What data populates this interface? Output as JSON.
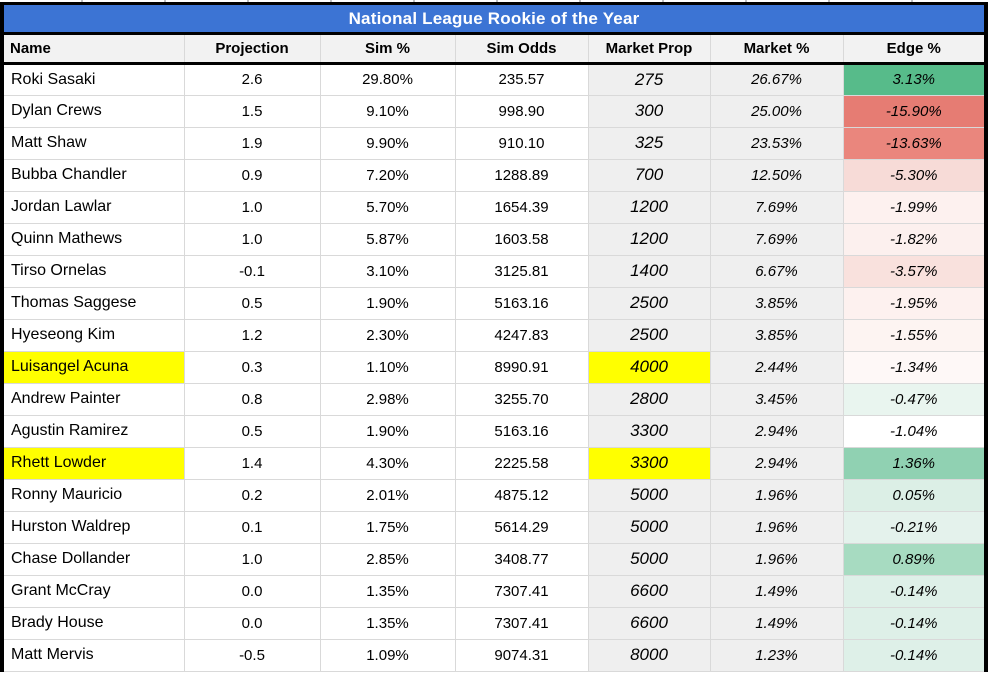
{
  "title": "National League Rookie of the Year",
  "colors": {
    "title_bg": "#3c74d4",
    "title_text": "#ffffff",
    "header_bg": "#f2f2f2",
    "market_col_bg": "#efefef",
    "grid_line": "#d9d9d9",
    "frame_border": "#000000",
    "highlight_yellow": "#ffff00",
    "edge_positive_strong": "#57bb8a",
    "edge_negative_strong": "#e67c73"
  },
  "table": {
    "columns": [
      "Name",
      "Projection",
      "Sim %",
      "Sim Odds",
      "Market Prop",
      "Market %",
      "Edge %"
    ],
    "rows": [
      {
        "cells": [
          "Roki Sasaki",
          "2.6",
          "29.80%",
          "235.57",
          "275",
          "26.67%",
          "3.13%"
        ],
        "edge_color": "#57bb8a"
      },
      {
        "cells": [
          "Dylan Crews",
          "1.5",
          "9.10%",
          "998.90",
          "300",
          "25.00%",
          "-15.90%"
        ],
        "edge_color": "#e67c73"
      },
      {
        "cells": [
          "Matt Shaw",
          "1.9",
          "9.90%",
          "910.10",
          "325",
          "23.53%",
          "-13.63%"
        ],
        "edge_color": "#ea867d"
      },
      {
        "cells": [
          "Bubba Chandler",
          "0.9",
          "7.20%",
          "1288.89",
          "700",
          "12.50%",
          "-5.30%"
        ],
        "edge_color": "#f7dbd7"
      },
      {
        "cells": [
          "Jordan Lawlar",
          "1.0",
          "5.70%",
          "1654.39",
          "1200",
          "7.69%",
          "-1.99%"
        ],
        "edge_color": "#fdf1ef"
      },
      {
        "cells": [
          "Quinn Mathews",
          "1.0",
          "5.87%",
          "1603.58",
          "1200",
          "7.69%",
          "-1.82%"
        ],
        "edge_color": "#fcf0ee"
      },
      {
        "cells": [
          "Tirso Ornelas",
          "-0.1",
          "3.10%",
          "3125.81",
          "1400",
          "6.67%",
          "-3.57%"
        ],
        "edge_color": "#f9e1dd"
      },
      {
        "cells": [
          "Thomas Saggese",
          "0.5",
          "1.90%",
          "5163.16",
          "2500",
          "3.85%",
          "-1.95%"
        ],
        "edge_color": "#fdf1ef"
      },
      {
        "cells": [
          "Hyeseong Kim",
          "1.2",
          "2.30%",
          "4247.83",
          "2500",
          "3.85%",
          "-1.55%"
        ],
        "edge_color": "#fdf4f2"
      },
      {
        "cells": [
          "Luisangel Acuna",
          "0.3",
          "1.10%",
          "8990.91",
          "4000",
          "2.44%",
          "-1.34%"
        ],
        "edge_color": "#fef8f7",
        "name_highlight": true,
        "prop_highlight": true
      },
      {
        "cells": [
          "Andrew Painter",
          "0.8",
          "2.98%",
          "3255.70",
          "2800",
          "3.45%",
          "-0.47%"
        ],
        "edge_color": "#e9f5ef"
      },
      {
        "cells": [
          "Agustin Ramirez",
          "0.5",
          "1.90%",
          "5163.16",
          "3300",
          "2.94%",
          "-1.04%"
        ],
        "edge_color": "#ffffff"
      },
      {
        "cells": [
          "Rhett Lowder",
          "1.4",
          "4.30%",
          "2225.58",
          "3300",
          "2.94%",
          "1.36%"
        ],
        "edge_color": "#90d1b2",
        "name_highlight": true,
        "prop_highlight": true
      },
      {
        "cells": [
          "Ronny Mauricio",
          "0.2",
          "2.01%",
          "4875.12",
          "5000",
          "1.96%",
          "0.05%"
        ],
        "edge_color": "#dcefe6"
      },
      {
        "cells": [
          "Hurston Waldrep",
          "0.1",
          "1.75%",
          "5614.29",
          "5000",
          "1.96%",
          "-0.21%"
        ],
        "edge_color": "#e4f2ec"
      },
      {
        "cells": [
          "Chase Dollander",
          "1.0",
          "2.85%",
          "3408.77",
          "5000",
          "1.96%",
          "0.89%"
        ],
        "edge_color": "#a7dbc1"
      },
      {
        "cells": [
          "Grant McCray",
          "0.0",
          "1.35%",
          "7307.41",
          "6600",
          "1.49%",
          "-0.14%"
        ],
        "edge_color": "#def0e8"
      },
      {
        "cells": [
          "Brady House",
          "0.0",
          "1.35%",
          "7307.41",
          "6600",
          "1.49%",
          "-0.14%"
        ],
        "edge_color": "#def0e8"
      },
      {
        "cells": [
          "Matt Mervis",
          "-0.5",
          "1.09%",
          "9074.31",
          "8000",
          "1.23%",
          "-0.14%"
        ],
        "edge_color": "#def0e8"
      }
    ]
  }
}
